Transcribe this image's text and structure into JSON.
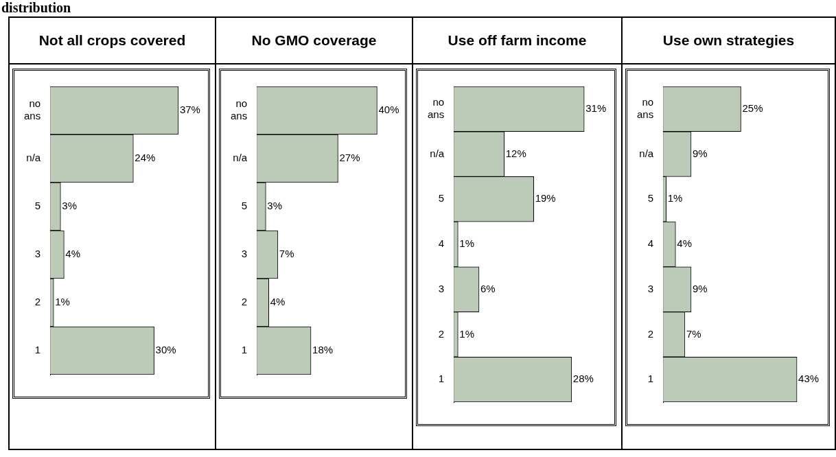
{
  "chart_data": [
    {
      "type": "bar",
      "orientation": "horizontal",
      "title": "Not all crops covered",
      "annotations": [
        "distribution"
      ],
      "categories": [
        "no ans",
        "n/a",
        "5",
        "3",
        "2",
        "1"
      ],
      "values": [
        37,
        24,
        3,
        4,
        1,
        30
      ],
      "value_labels": [
        "37%",
        "24%",
        "3%",
        "4%",
        "1%",
        "30%"
      ],
      "color": "#bccbb8",
      "legend": false,
      "grid": false
    },
    {
      "type": "bar",
      "orientation": "horizontal",
      "title": "No GMO coverage",
      "categories": [
        "no ans",
        "n/a",
        "5",
        "3",
        "2",
        "1"
      ],
      "values": [
        40,
        27,
        3,
        7,
        4,
        18
      ],
      "value_labels": [
        "40%",
        "27%",
        "3%",
        "7%",
        "4%",
        "18%"
      ],
      "color": "#bccbb8",
      "legend": false,
      "grid": false
    },
    {
      "type": "bar",
      "orientation": "horizontal",
      "title": "Use off farm income",
      "categories": [
        "no ans",
        "n/a",
        "5",
        "4",
        "3",
        "2",
        "1"
      ],
      "values": [
        31,
        12,
        19,
        1,
        6,
        1,
        28
      ],
      "value_labels": [
        "31%",
        "12%",
        "19%",
        "1%",
        "6%",
        "1%",
        "28%"
      ],
      "color": "#bccbb8",
      "legend": false,
      "grid": false
    },
    {
      "type": "bar",
      "orientation": "horizontal",
      "title": "Use own strategies",
      "categories": [
        "no ans",
        "n/a",
        "5",
        "4",
        "3",
        "2",
        "1"
      ],
      "values": [
        25,
        9,
        1,
        4,
        9,
        7,
        43
      ],
      "value_labels": [
        "25%",
        "9%",
        "1%",
        "4%",
        "9%",
        "7%",
        "43%"
      ],
      "color": "#bccbb8",
      "legend": false,
      "grid": false
    }
  ]
}
